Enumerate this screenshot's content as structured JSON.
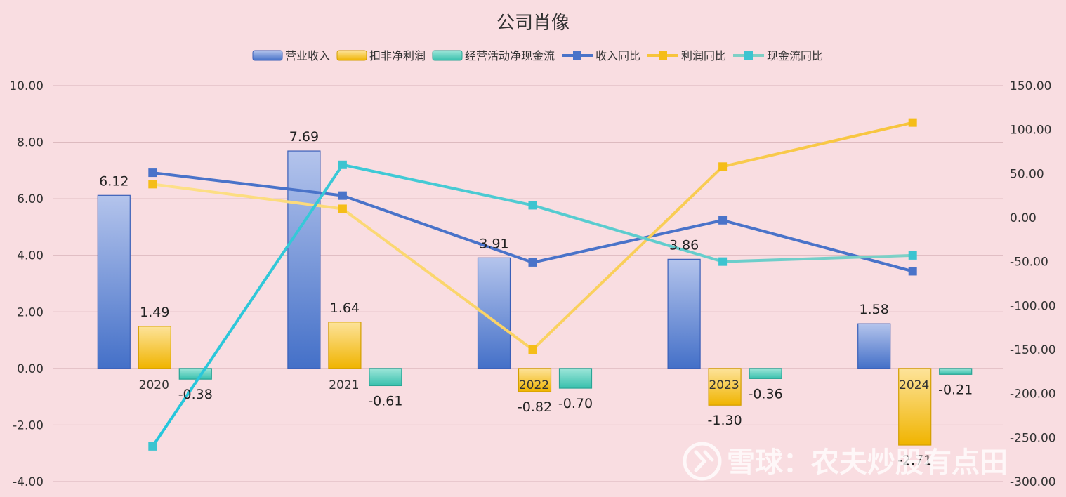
{
  "chart_data": {
    "type": "bar",
    "title": "公司肖像",
    "categories": [
      "2020",
      "2021",
      "2022",
      "2023",
      "2024"
    ],
    "ylim": [
      -4,
      10
    ],
    "y_ticks": [
      "10.00",
      "8.00",
      "6.00",
      "4.00",
      "2.00",
      "0.00",
      "-2.00",
      "-4.00"
    ],
    "y2lim": [
      -300,
      150
    ],
    "y2_ticks": [
      "150.00",
      "100.00",
      "50.00",
      "0.00",
      "-50.00",
      "-100.00",
      "-150.00",
      "-200.00",
      "-250.00",
      "-300.00"
    ],
    "legend_position": "top",
    "grid": true,
    "bar_series": [
      {
        "name": "营业收入",
        "values": [
          6.12,
          7.69,
          3.91,
          3.86,
          1.58
        ],
        "labels": [
          "6.12",
          "7.69",
          "3.91",
          "3.86",
          "1.58"
        ],
        "color_top": "#b4c4ec",
        "color_bottom": "#4470c8",
        "border": "#3a5fb8"
      },
      {
        "name": "扣非净利润",
        "values": [
          1.49,
          1.64,
          -0.82,
          -1.3,
          -2.71
        ],
        "labels": [
          "1.49",
          "1.64",
          "-0.82",
          "-1.30",
          "-2.71"
        ],
        "color_top": "#fde39a",
        "color_bottom": "#f0b400",
        "border": "#d39e00"
      },
      {
        "name": "经营活动净现金流",
        "values": [
          -0.38,
          -0.61,
          -0.7,
          -0.36,
          -0.21
        ],
        "labels": [
          "-0.38",
          "-0.61",
          "-0.70",
          "-0.36",
          "-0.21"
        ],
        "color_top": "#9de6d9",
        "color_bottom": "#38c0ad",
        "border": "#2aa595"
      }
    ],
    "line_series": [
      {
        "name": "收入同比",
        "values": [
          51,
          25,
          -51,
          -3,
          -61
        ],
        "color": "#4a73c9",
        "marker": "#4a73c9"
      },
      {
        "name": "利润同比",
        "values": [
          38,
          10,
          -150,
          58,
          108
        ],
        "color_start": "#fde08a",
        "color_end": "#f7c43c",
        "marker": "#f5bd18"
      },
      {
        "name": "现金流同比",
        "values": [
          -260,
          60,
          14,
          -50,
          -43
        ],
        "color_start": "#24c6dc",
        "color_end": "#7fd0c6",
        "marker": "#3cc4d0"
      }
    ]
  },
  "watermark": {
    "text": "雪球：农夫炒股有点田",
    "logo_icon": "xueqiu-logo-icon"
  }
}
